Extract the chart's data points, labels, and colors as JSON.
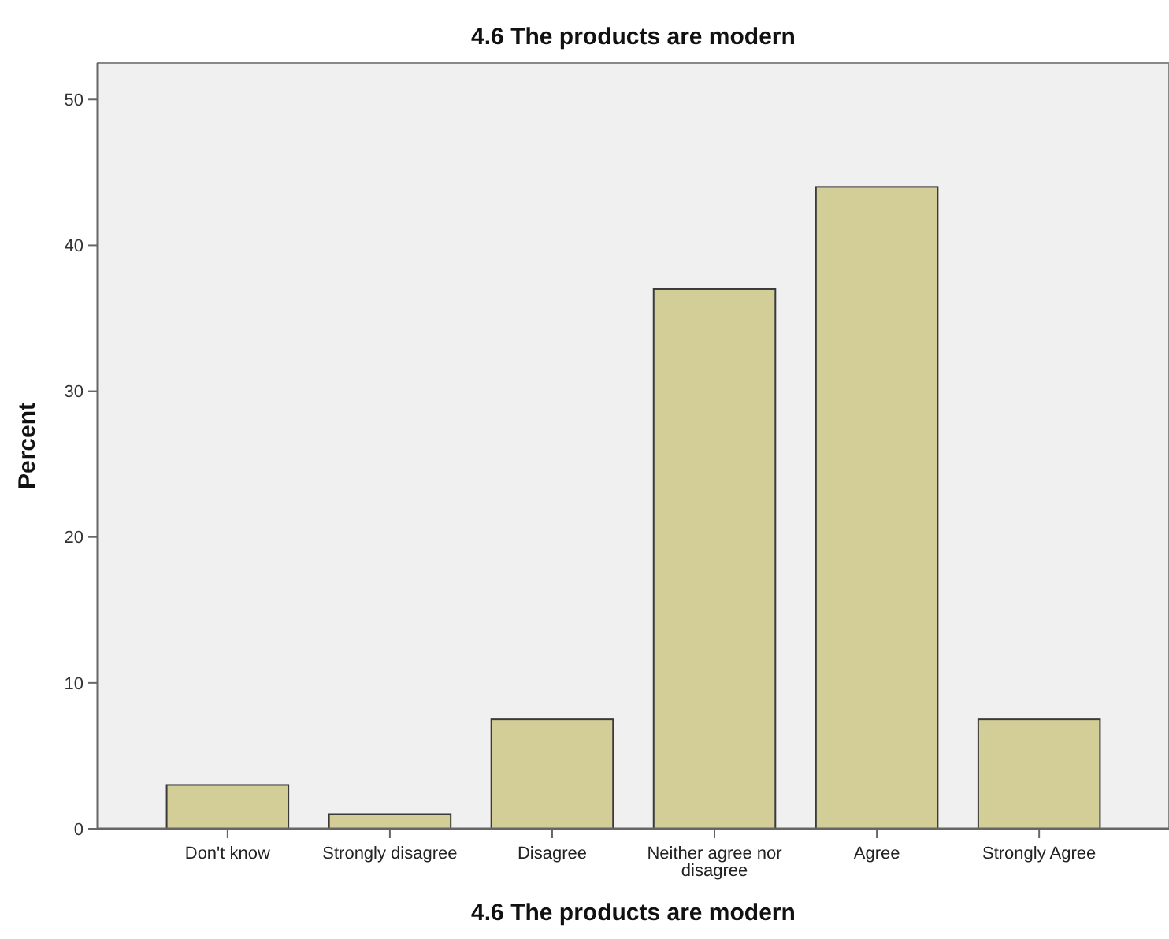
{
  "chart_data": {
    "type": "bar",
    "title": "4.6 The products are modern",
    "xlabel": "4.6 The products are modern",
    "ylabel": "Percent",
    "categories": [
      "Don't know",
      "Strongly disagree",
      "Disagree",
      "Neither agree nor disagree",
      "Agree",
      "Strongly Agree"
    ],
    "values": [
      3.0,
      1.0,
      7.5,
      37.0,
      44.0,
      7.5
    ],
    "color": "#d3ce97",
    "ylim": [
      0,
      52.5
    ],
    "yticks": [
      0,
      10,
      20,
      30,
      40,
      50
    ],
    "grid": false
  }
}
